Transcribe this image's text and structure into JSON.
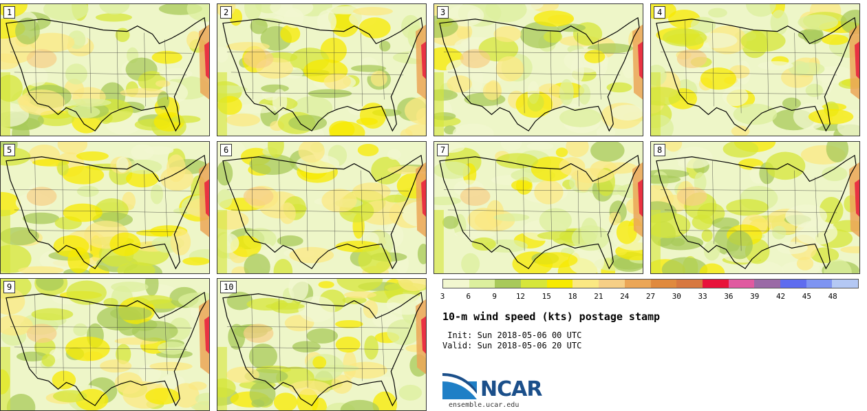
{
  "panels": [
    {
      "label": "1"
    },
    {
      "label": "2"
    },
    {
      "label": "3"
    },
    {
      "label": "4"
    },
    {
      "label": "5"
    },
    {
      "label": "6"
    },
    {
      "label": "7"
    },
    {
      "label": "8"
    },
    {
      "label": "9"
    },
    {
      "label": "10"
    }
  ],
  "colorbar": {
    "colors": [
      "#f2f7d0",
      "#dcef9e",
      "#a8c95a",
      "#d6e63a",
      "#f7ea00",
      "#fbe883",
      "#f6cf86",
      "#eba657",
      "#e08a3e",
      "#d77840",
      "#e8123a",
      "#e05aa0",
      "#9a6aa6",
      "#5e6cef",
      "#7e94f2",
      "#b4c8f4"
    ],
    "tick_labels": [
      "3",
      "6",
      "9",
      "12",
      "15",
      "18",
      "21",
      "24",
      "27",
      "30",
      "33",
      "36",
      "39",
      "42",
      "45",
      "48"
    ]
  },
  "title": "10-m wind speed (kts) postage stamp",
  "init": " Init: Sun 2018-05-06 00 UTC",
  "valid": "Valid: Sun 2018-05-06 20 UTC",
  "logo": {
    "name": "ncar-logo",
    "text": "NCAR"
  },
  "url": "ensemble.ucar.edu"
}
